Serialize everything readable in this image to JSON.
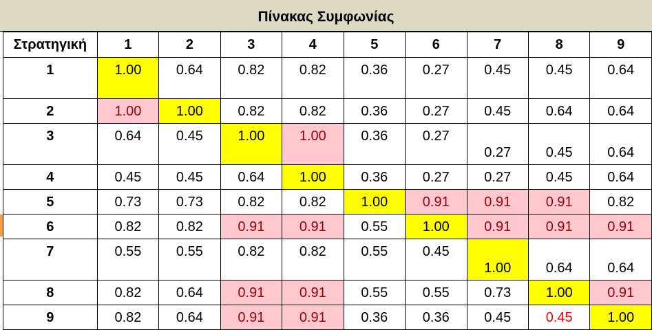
{
  "title": "Πίνακας Συμφωνίας",
  "corner_label": "Στρατηγική",
  "column_headers": [
    "1",
    "2",
    "3",
    "4",
    "5",
    "6",
    "7",
    "8",
    "9"
  ],
  "rows": [
    {
      "label": "1",
      "values": [
        "1.00",
        "0.64",
        "0.82",
        "0.82",
        "0.36",
        "0.27",
        "0.45",
        "0.45",
        "0.64"
      ]
    },
    {
      "label": "2",
      "values": [
        "1.00",
        "1.00",
        "0.82",
        "0.82",
        "0.36",
        "0.27",
        "0.45",
        "0.64",
        "0.64"
      ]
    },
    {
      "label": "3",
      "values": [
        "0.64",
        "0.45",
        "1.00",
        "1.00",
        "0.36",
        "0.27",
        "0.27",
        "0.45",
        "0.64"
      ]
    },
    {
      "label": "4",
      "values": [
        "0.45",
        "0.45",
        "0.64",
        "1.00",
        "0.36",
        "0.27",
        "0.27",
        "0.45",
        "0.64"
      ]
    },
    {
      "label": "5",
      "values": [
        "0.73",
        "0.73",
        "0.82",
        "0.82",
        "1.00",
        "0.91",
        "0.91",
        "0.91",
        "0.82"
      ]
    },
    {
      "label": "6",
      "values": [
        "0.82",
        "0.82",
        "0.91",
        "0.91",
        "0.55",
        "1.00",
        "0.91",
        "0.91",
        "0.91"
      ]
    },
    {
      "label": "7",
      "values": [
        "0.55",
        "0.55",
        "0.82",
        "0.82",
        "0.55",
        "0.45",
        "1.00",
        "0.64",
        "0.64"
      ]
    },
    {
      "label": "8",
      "values": [
        "0.82",
        "0.64",
        "0.91",
        "0.91",
        "0.55",
        "0.55",
        "0.73",
        "1.00",
        "0.91"
      ]
    },
    {
      "label": "9",
      "values": [
        "0.82",
        "0.64",
        "0.91",
        "0.91",
        "0.36",
        "0.36",
        "0.45",
        "0.45",
        "1.00"
      ]
    }
  ],
  "colors": {
    "diagonal_fill": "#ffff00",
    "highlight_fill": "#ffc7ce",
    "highlight_text": "#9c0006",
    "title_fill": "#ddd9c4",
    "red_text": "#ff0000"
  }
}
